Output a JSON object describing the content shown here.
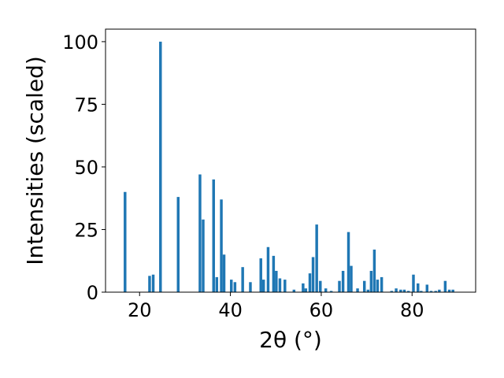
{
  "chart_data": {
    "type": "bar",
    "xlabel": "2θ (°)",
    "ylabel": "Intensities (scaled)",
    "xlim": [
      12.5,
      94
    ],
    "ylim": [
      0,
      105
    ],
    "xticks": [
      20,
      40,
      60,
      80
    ],
    "yticks": [
      0,
      25,
      50,
      75,
      100
    ],
    "bar_color": "#1f77b4",
    "bar_width": 0.6,
    "grid": false,
    "points": [
      {
        "x": 16.8,
        "y": 40
      },
      {
        "x": 22.2,
        "y": 6.5
      },
      {
        "x": 23.0,
        "y": 7
      },
      {
        "x": 24.6,
        "y": 100
      },
      {
        "x": 28.5,
        "y": 38
      },
      {
        "x": 33.3,
        "y": 47
      },
      {
        "x": 34.0,
        "y": 29
      },
      {
        "x": 36.3,
        "y": 45
      },
      {
        "x": 37.0,
        "y": 6
      },
      {
        "x": 38.0,
        "y": 37
      },
      {
        "x": 38.6,
        "y": 15
      },
      {
        "x": 40.2,
        "y": 5
      },
      {
        "x": 41.0,
        "y": 4
      },
      {
        "x": 42.7,
        "y": 10
      },
      {
        "x": 44.4,
        "y": 4
      },
      {
        "x": 46.7,
        "y": 13.5
      },
      {
        "x": 47.3,
        "y": 5
      },
      {
        "x": 48.3,
        "y": 18
      },
      {
        "x": 49.5,
        "y": 14.5
      },
      {
        "x": 50.1,
        "y": 8.5
      },
      {
        "x": 50.9,
        "y": 5.5
      },
      {
        "x": 52.0,
        "y": 5
      },
      {
        "x": 54.0,
        "y": 1
      },
      {
        "x": 56.0,
        "y": 3.5
      },
      {
        "x": 56.6,
        "y": 1.5
      },
      {
        "x": 57.5,
        "y": 7.5
      },
      {
        "x": 58.2,
        "y": 14
      },
      {
        "x": 59.0,
        "y": 27
      },
      {
        "x": 59.8,
        "y": 4.5
      },
      {
        "x": 61.0,
        "y": 1.5
      },
      {
        "x": 62.2,
        "y": 0.5
      },
      {
        "x": 64.0,
        "y": 4.5
      },
      {
        "x": 64.8,
        "y": 8.5
      },
      {
        "x": 66.0,
        "y": 24
      },
      {
        "x": 66.6,
        "y": 10.5
      },
      {
        "x": 68.0,
        "y": 1.5
      },
      {
        "x": 69.5,
        "y": 4.5
      },
      {
        "x": 70.3,
        "y": 1
      },
      {
        "x": 71.0,
        "y": 8.5
      },
      {
        "x": 71.7,
        "y": 17
      },
      {
        "x": 72.4,
        "y": 5
      },
      {
        "x": 73.3,
        "y": 6
      },
      {
        "x": 75.5,
        "y": 0.5
      },
      {
        "x": 76.5,
        "y": 1.5
      },
      {
        "x": 77.5,
        "y": 1
      },
      {
        "x": 78.3,
        "y": 1
      },
      {
        "x": 79.2,
        "y": 0.5
      },
      {
        "x": 80.3,
        "y": 7
      },
      {
        "x": 81.3,
        "y": 3.5
      },
      {
        "x": 82.0,
        "y": 0.5
      },
      {
        "x": 83.3,
        "y": 3
      },
      {
        "x": 84.2,
        "y": 0.5
      },
      {
        "x": 85.2,
        "y": 0.5
      },
      {
        "x": 86.0,
        "y": 1
      },
      {
        "x": 87.3,
        "y": 4.5
      },
      {
        "x": 88.2,
        "y": 1
      },
      {
        "x": 89.0,
        "y": 1
      }
    ]
  }
}
